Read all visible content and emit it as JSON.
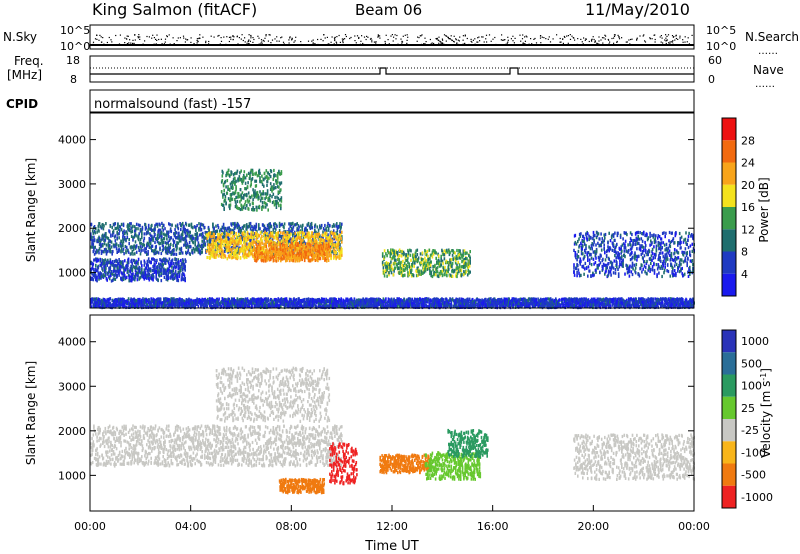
{
  "header": {
    "station": "King Salmon (fitACF)",
    "beam": "Beam 06",
    "date": "11/May/2010"
  },
  "top_panels": {
    "nsky_label": "N.Sky",
    "nsky_ticks": [
      "10^5",
      "10^0"
    ],
    "nsearch_label": "N.Search",
    "nsearch_ticks": [
      "10^5",
      "10^0"
    ],
    "freq_label": "Freq.",
    "freq_unit": "[MHz]",
    "freq_ticks": [
      "18",
      "8"
    ],
    "nave_label": "Nave",
    "nave_ticks": [
      "60",
      "0"
    ],
    "cpid_label": "CPID",
    "cpid_text": "normalsound (fast) -157"
  },
  "chart_data": [
    {
      "type": "heatmap",
      "title": "",
      "xlabel": "",
      "ylabel": "Slant Range [km]",
      "ylim": [
        200,
        4600
      ],
      "yticks": [
        "4000",
        "3000",
        "2000",
        "1000"
      ],
      "xlim": [
        "00:00",
        "24:00"
      ],
      "colorbar": {
        "label": "Power [dB]",
        "ticks": [
          "28",
          "24",
          "20",
          "16",
          "12",
          "8",
          "4"
        ],
        "colors": [
          "#ee1111",
          "#f26a0f",
          "#f8a41a",
          "#f4e21d",
          "#3a9c4c",
          "#1f6e6e",
          "#1f3ac2",
          "#1a1aee"
        ]
      },
      "regions": [
        {
          "t0": 0.0,
          "t1": 10.0,
          "r0": 1400,
          "r1": 2100,
          "level": 8
        },
        {
          "t0": 4.6,
          "t1": 10.0,
          "r0": 1300,
          "r1": 1900,
          "level": 20
        },
        {
          "t0": 6.5,
          "t1": 9.5,
          "r0": 1250,
          "r1": 1650,
          "level": 24
        },
        {
          "t0": 5.2,
          "t1": 7.6,
          "r0": 2400,
          "r1": 3300,
          "level": 12
        },
        {
          "t0": 0.0,
          "t1": 3.8,
          "r0": 800,
          "r1": 1300,
          "level": 6
        },
        {
          "t0": 11.6,
          "t1": 15.1,
          "r0": 900,
          "r1": 1500,
          "level": 14
        },
        {
          "t0": 19.2,
          "t1": 24.0,
          "r0": 900,
          "r1": 1900,
          "level": 6
        },
        {
          "t0": 0.0,
          "t1": 24.0,
          "r0": 200,
          "r1": 400,
          "level": 5
        }
      ]
    },
    {
      "type": "heatmap",
      "title": "",
      "xlabel": "Time UT",
      "ylabel": "Slant Range [km]",
      "ylim": [
        200,
        4600
      ],
      "yticks": [
        "4000",
        "3000",
        "2000",
        "1000"
      ],
      "xticks": [
        "00:00",
        "04:00",
        "08:00",
        "12:00",
        "16:00",
        "20:00",
        "00:00"
      ],
      "colorbar": {
        "label": "Velocity [m s^-1]",
        "ticks": [
          "1000",
          "500",
          "100",
          "25",
          "-25",
          "-100",
          "-500",
          "-1000"
        ],
        "colors": [
          "#2a33b8",
          "#2a6e98",
          "#2a9a60",
          "#66c82e",
          "#c8c8c4",
          "#f8b51a",
          "#f07a10",
          "#ee2222"
        ]
      },
      "regions": [
        {
          "t0": 0.0,
          "t1": 10.0,
          "r0": 1200,
          "r1": 2100,
          "level": 0
        },
        {
          "t0": 5.0,
          "t1": 9.5,
          "r0": 2200,
          "r1": 3400,
          "level": 0
        },
        {
          "t0": 19.2,
          "t1": 24.0,
          "r0": 900,
          "r1": 1900,
          "level": 0
        },
        {
          "t0": 9.5,
          "t1": 10.6,
          "r0": 800,
          "r1": 1700,
          "level": -600
        },
        {
          "t0": 7.5,
          "t1": 9.3,
          "r0": 600,
          "r1": 900,
          "level": -120
        },
        {
          "t0": 11.5,
          "t1": 13.5,
          "r0": 1050,
          "r1": 1450,
          "level": -150
        },
        {
          "t0": 13.3,
          "t1": 15.5,
          "r0": 900,
          "r1": 1500,
          "level": 60
        },
        {
          "t0": 14.2,
          "t1": 15.8,
          "r0": 1400,
          "r1": 2000,
          "level": 200
        }
      ]
    }
  ]
}
